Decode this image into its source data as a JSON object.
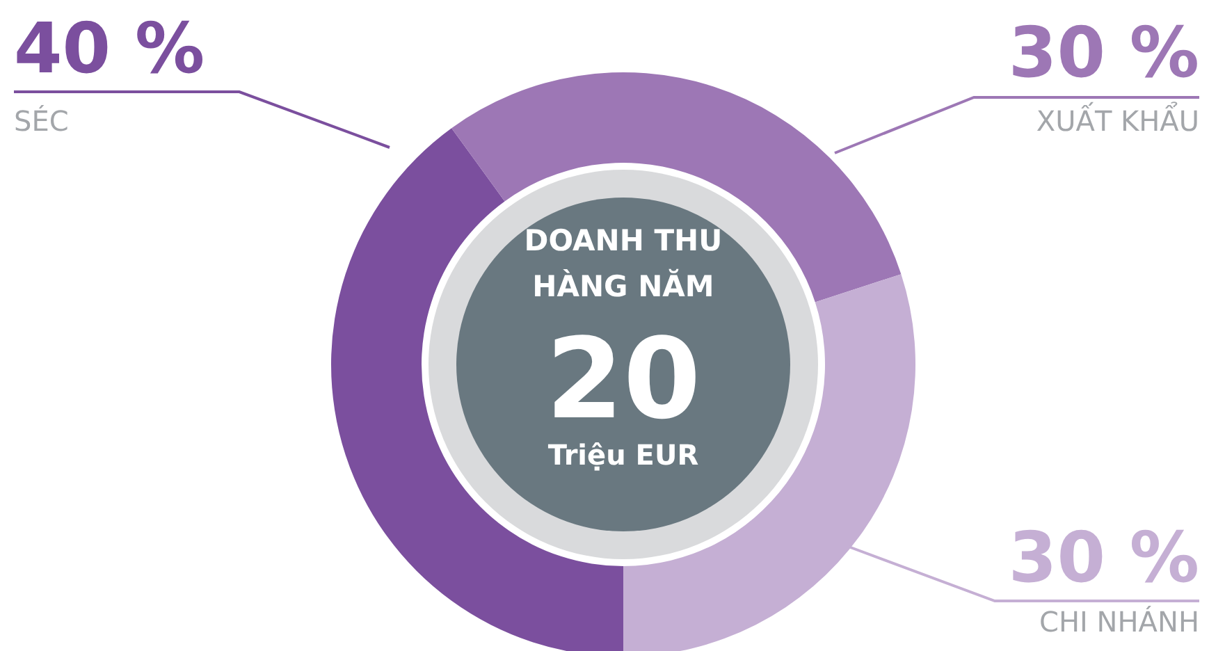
{
  "chart_data": {
    "type": "donut",
    "title": "DOANH THU HÀNG NĂM",
    "categories": [
      "SÉC",
      "XUẤT KHẨU",
      "CHI NHÁNH"
    ],
    "values": [
      40,
      30,
      30
    ],
    "colors": [
      "#7b4f9e",
      "#9d77b5",
      "#c5afd4"
    ],
    "value_labels": [
      "40 %",
      "30 %",
      "30 %"
    ],
    "annotations": [
      "20",
      "Triệu EUR"
    ],
    "legend": false
  }
}
